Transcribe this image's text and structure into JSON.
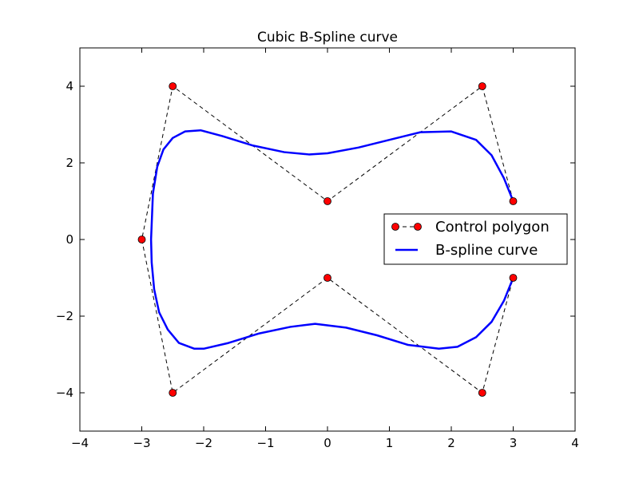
{
  "chart_data": {
    "type": "line",
    "title": "Cubic B-Spline curve",
    "xlabel": "",
    "ylabel": "",
    "xlim": [
      -4,
      4
    ],
    "ylim": [
      -5,
      5
    ],
    "xticks": [
      -4,
      -3,
      -2,
      -1,
      0,
      1,
      2,
      3,
      4
    ],
    "yticks": [
      -4,
      -2,
      0,
      2,
      4
    ],
    "xtick_labels": [
      "−4",
      "−3",
      "−2",
      "−1",
      "0",
      "1",
      "2",
      "3",
      "4"
    ],
    "ytick_labels": [
      "−4",
      "−2",
      "0",
      "2",
      "4"
    ],
    "grid": false,
    "legend_position": "center-right",
    "series": [
      {
        "name": "Control polygon",
        "style": "dashed-with-markers",
        "color": "#000000",
        "marker_color": "#ff0000",
        "x": [
          3,
          2.5,
          0,
          -2.5,
          -3,
          -2.5,
          0,
          2.5,
          3
        ],
        "y": [
          1,
          4,
          1,
          4,
          0,
          -4,
          -1,
          -4,
          -1
        ]
      },
      {
        "name": "B-spline curve",
        "style": "solid",
        "color": "#0000ff",
        "x": [
          3.0,
          2.85,
          2.65,
          2.4,
          2.0,
          1.5,
          1.0,
          0.5,
          0.0,
          -0.3,
          -0.7,
          -1.2,
          -1.7,
          -2.05,
          -2.3,
          -2.5,
          -2.65,
          -2.75,
          -2.82,
          -2.85,
          -2.84,
          -2.8,
          -2.72,
          -2.58,
          -2.4,
          -2.15,
          -2.0,
          -1.6,
          -1.1,
          -0.6,
          -0.2,
          0.3,
          0.8,
          1.3,
          1.8,
          2.1,
          2.4,
          2.65,
          2.85,
          3.0
        ],
        "y": [
          1.0,
          1.6,
          2.2,
          2.6,
          2.82,
          2.8,
          2.6,
          2.4,
          2.25,
          2.22,
          2.28,
          2.45,
          2.7,
          2.85,
          2.82,
          2.65,
          2.35,
          1.9,
          1.2,
          0.0,
          -0.6,
          -1.3,
          -1.9,
          -2.35,
          -2.7,
          -2.85,
          -2.85,
          -2.7,
          -2.45,
          -2.28,
          -2.2,
          -2.3,
          -2.5,
          -2.75,
          -2.85,
          -2.8,
          -2.55,
          -2.15,
          -1.6,
          -1.0
        ]
      }
    ]
  }
}
